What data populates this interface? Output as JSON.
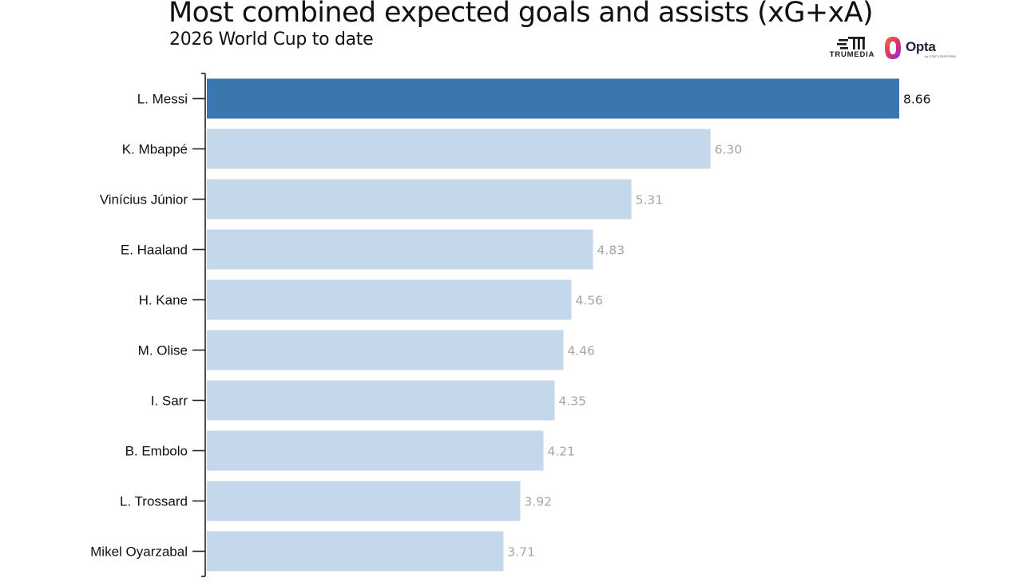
{
  "header": {
    "title": "Most combined expected goals and assists (xG+xA)",
    "subtitle": "2026 World Cup to date"
  },
  "logos": {
    "trumedia": "TRUMEDIA",
    "opta": "Opta",
    "opta_sub": "by STATS PERFORM"
  },
  "colors": {
    "highlight": "#3b76ae",
    "default_bar": "#c5d7ea",
    "highlight_label": "#111111",
    "default_label": "#a6a6a6",
    "axis": "#222222"
  },
  "chart_data": {
    "type": "bar",
    "orientation": "horizontal",
    "title": "Most combined expected goals and assists (xG+xA)",
    "subtitle": "2026 World Cup to date",
    "categories": [
      "L. Messi",
      "K. Mbappé",
      "Vinícius Júnior",
      "E. Haaland",
      "H. Kane",
      "M. Olise",
      "I. Sarr",
      "B. Embolo",
      "L. Trossard",
      "Mikel Oyarzabal"
    ],
    "values": [
      8.66,
      6.3,
      5.31,
      4.83,
      4.56,
      4.46,
      4.35,
      4.21,
      3.92,
      3.71
    ],
    "value_labels": [
      "8.66",
      "6.30",
      "5.31",
      "4.83",
      "4.56",
      "4.46",
      "4.35",
      "4.21",
      "3.92",
      "3.71"
    ],
    "highlighted": [
      "L. Messi"
    ],
    "xlim": [
      0,
      8.66
    ],
    "grid": false,
    "legend": "none"
  }
}
